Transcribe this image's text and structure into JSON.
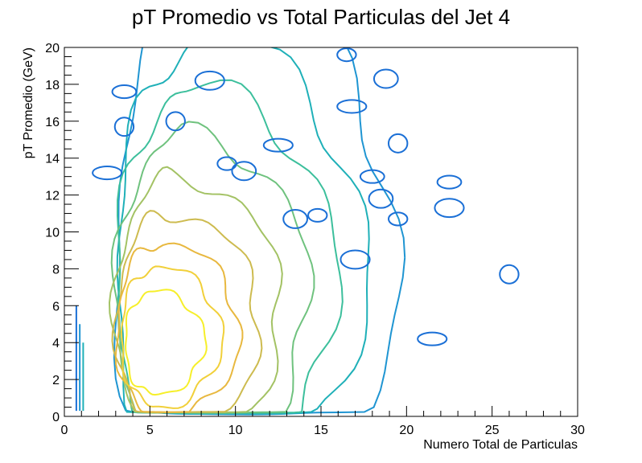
{
  "chart_data": {
    "type": "contour",
    "title": "pT Promedio vs Total Particulas del Jet 4",
    "xlabel": "Numero Total de Particulas",
    "ylabel": "pT Promedio (GeV)",
    "xlim": [
      0,
      30
    ],
    "ylim": [
      0,
      20
    ],
    "x_ticks": [
      "0",
      "5",
      "10",
      "15",
      "20",
      "25",
      "30"
    ],
    "y_ticks": [
      "0",
      "2",
      "4",
      "6",
      "8",
      "10",
      "12",
      "14",
      "16",
      "18",
      "20"
    ],
    "grid": false,
    "legend": "none",
    "palette": [
      "#0d47c9",
      "#1a6fd6",
      "#1f95d2",
      "#1fb0b8",
      "#3cbf9c",
      "#6fc27e",
      "#a3c264",
      "#cdbb4f",
      "#e8b83f",
      "#f1d03a",
      "#f6ef2a"
    ],
    "contours": [
      {
        "level": 1,
        "center": [
          5.2,
          4.0
        ],
        "rx": 3.0,
        "ry": 2.8
      },
      {
        "level": 2,
        "center": [
          5.4,
          4.3
        ],
        "rx": 3.8,
        "ry": 3.8
      },
      {
        "level": 3,
        "center": [
          5.6,
          4.6
        ],
        "rx": 4.6,
        "ry": 4.8
      },
      {
        "level": 4,
        "center": [
          6.0,
          5.0
        ],
        "rx": 5.4,
        "ry": 6.0
      },
      {
        "level": 5,
        "center": [
          6.4,
          5.6
        ],
        "rx": 6.3,
        "ry": 7.4
      },
      {
        "level": 6,
        "center": [
          7.0,
          6.3
        ],
        "rx": 7.3,
        "ry": 9.0
      },
      {
        "level": 7,
        "center": [
          7.6,
          7.0
        ],
        "rx": 8.3,
        "ry": 10.8
      },
      {
        "level": 8,
        "center": [
          8.2,
          7.8
        ],
        "rx": 9.4,
        "ry": 12.6
      },
      {
        "level": 9,
        "center": [
          8.8,
          8.6
        ],
        "rx": 10.6,
        "ry": 14.8
      }
    ],
    "islands": [
      {
        "x": 16.5,
        "y": 19.6
      },
      {
        "x": 18.8,
        "y": 18.3
      },
      {
        "x": 16.8,
        "y": 16.8
      },
      {
        "x": 19.5,
        "y": 14.8
      },
      {
        "x": 22.5,
        "y": 12.7
      },
      {
        "x": 22.5,
        "y": 11.3
      },
      {
        "x": 19.5,
        "y": 10.7
      },
      {
        "x": 18.5,
        "y": 11.8
      },
      {
        "x": 21.5,
        "y": 4.2
      },
      {
        "x": 26.0,
        "y": 7.7
      },
      {
        "x": 18.0,
        "y": 13.0
      },
      {
        "x": 17.0,
        "y": 8.5
      },
      {
        "x": 14.8,
        "y": 10.9
      },
      {
        "x": 13.5,
        "y": 10.7
      },
      {
        "x": 12.5,
        "y": 14.7
      },
      {
        "x": 3.5,
        "y": 15.7
      },
      {
        "x": 3.5,
        "y": 17.6
      },
      {
        "x": 8.5,
        "y": 18.2
      },
      {
        "x": 9.5,
        "y": 13.7
      },
      {
        "x": 10.5,
        "y": 13.3
      },
      {
        "x": 2.5,
        "y": 13.2
      },
      {
        "x": 6.5,
        "y": 16.0
      }
    ]
  }
}
